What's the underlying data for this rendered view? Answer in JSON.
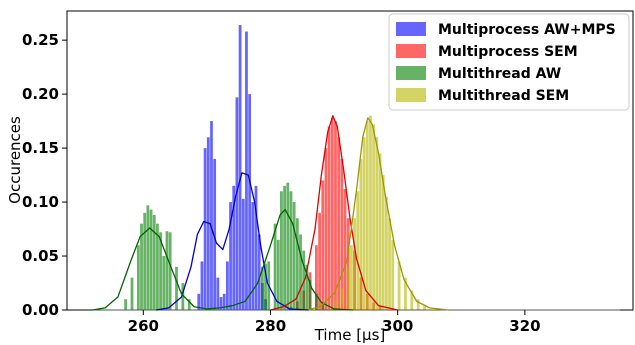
{
  "chart_data": {
    "type": "histogram",
    "xlabel": "Time [µs]",
    "ylabel": "Occurences",
    "xlim": [
      248,
      337
    ],
    "ylim": [
      0,
      0.277
    ],
    "x_ticks": [
      260,
      280,
      300,
      320
    ],
    "x_tick_labels": [
      "260",
      "280",
      "300",
      "320"
    ],
    "y_ticks": [
      0.0,
      0.05,
      0.1,
      0.15,
      0.2,
      0.25
    ],
    "y_tick_labels": [
      "0.00",
      "0.05",
      "0.10",
      "0.15",
      "0.20",
      "0.25"
    ],
    "bin_width": 0.5,
    "bar_alpha": 0.6,
    "legend_position": "top-right",
    "series": [
      {
        "name": "Multiprocess AW+MPS",
        "color": "#0000ff",
        "curve_color": "#0000cc",
        "bins": [
          [
            268.5,
            0.015
          ],
          [
            269.0,
            0.045
          ],
          [
            269.5,
            0.15
          ],
          [
            270.0,
            0.16
          ],
          [
            270.5,
            0.175
          ],
          [
            271.0,
            0.14
          ],
          [
            271.5,
            0.03
          ],
          [
            272.0,
            0.012
          ],
          [
            272.5,
            0.015
          ],
          [
            273.0,
            0.045
          ],
          [
            273.5,
            0.1
          ],
          [
            274.0,
            0.115
          ],
          [
            274.5,
            0.197
          ],
          [
            275.0,
            0.264
          ],
          [
            275.5,
            0.103
          ],
          [
            276.0,
            0.258
          ],
          [
            276.5,
            0.2
          ],
          [
            277.0,
            0.1
          ],
          [
            277.5,
            0.115
          ],
          [
            278.0,
            0.07
          ],
          [
            278.5,
            0.025
          ],
          [
            279.0,
            0.01
          ]
        ],
        "kde": [
          [
            262.0,
            0.0
          ],
          [
            264.0,
            0.002
          ],
          [
            266.0,
            0.012
          ],
          [
            267.5,
            0.04
          ],
          [
            268.5,
            0.07
          ],
          [
            269.5,
            0.082
          ],
          [
            270.5,
            0.08
          ],
          [
            271.5,
            0.062
          ],
          [
            272.5,
            0.056
          ],
          [
            273.5,
            0.075
          ],
          [
            274.5,
            0.105
          ],
          [
            275.5,
            0.127
          ],
          [
            276.5,
            0.125
          ],
          [
            277.5,
            0.1
          ],
          [
            278.5,
            0.058
          ],
          [
            279.5,
            0.025
          ],
          [
            281.0,
            0.008
          ],
          [
            283.0,
            0.001
          ],
          [
            286.0,
            0.0
          ]
        ]
      },
      {
        "name": "Multiprocess SEM",
        "color": "#ff0000",
        "curve_color": "#e00000",
        "bins": [
          [
            283.0,
            0.003
          ],
          [
            284.0,
            0.008
          ],
          [
            285.0,
            0.018
          ],
          [
            286.0,
            0.035
          ],
          [
            287.0,
            0.06
          ],
          [
            287.5,
            0.09
          ],
          [
            288.0,
            0.12
          ],
          [
            288.5,
            0.15
          ],
          [
            289.0,
            0.17
          ],
          [
            289.5,
            0.178
          ],
          [
            290.0,
            0.175
          ],
          [
            290.5,
            0.16
          ],
          [
            291.0,
            0.14
          ],
          [
            291.5,
            0.112
          ],
          [
            292.0,
            0.085
          ],
          [
            293.0,
            0.055
          ],
          [
            294.0,
            0.03
          ],
          [
            295.0,
            0.015
          ],
          [
            296.0,
            0.007
          ],
          [
            297.0,
            0.003
          ]
        ],
        "kde": [
          [
            280.0,
            0.0
          ],
          [
            282.0,
            0.003
          ],
          [
            284.0,
            0.01
          ],
          [
            285.5,
            0.03
          ],
          [
            287.0,
            0.075
          ],
          [
            288.0,
            0.125
          ],
          [
            289.0,
            0.165
          ],
          [
            289.8,
            0.18
          ],
          [
            290.5,
            0.17
          ],
          [
            291.5,
            0.13
          ],
          [
            292.5,
            0.085
          ],
          [
            293.5,
            0.048
          ],
          [
            295.0,
            0.018
          ],
          [
            297.0,
            0.004
          ],
          [
            300.0,
            0.0
          ]
        ]
      },
      {
        "name": "Multithread AW",
        "color": "#008000",
        "curve_color": "#006400",
        "bins": [
          [
            257.0,
            0.01
          ],
          [
            258.0,
            0.03
          ],
          [
            259.0,
            0.06
          ],
          [
            259.5,
            0.08
          ],
          [
            260.0,
            0.09
          ],
          [
            260.5,
            0.097
          ],
          [
            261.0,
            0.093
          ],
          [
            261.5,
            0.088
          ],
          [
            262.0,
            0.08
          ],
          [
            262.5,
            0.072
          ],
          [
            263.0,
            0.05
          ],
          [
            263.5,
            0.073
          ],
          [
            264.0,
            0.072
          ],
          [
            265.0,
            0.04
          ],
          [
            266.0,
            0.025
          ],
          [
            267.0,
            0.01
          ],
          [
            278.5,
            0.04
          ],
          [
            279.0,
            0.043
          ],
          [
            279.5,
            0.045
          ],
          [
            280.5,
            0.08
          ],
          [
            281.0,
            0.065
          ],
          [
            281.5,
            0.11
          ],
          [
            282.0,
            0.115
          ],
          [
            282.5,
            0.118
          ],
          [
            283.0,
            0.11
          ],
          [
            283.5,
            0.1
          ],
          [
            284.0,
            0.085
          ],
          [
            284.5,
            0.07
          ],
          [
            285.0,
            0.055
          ],
          [
            285.5,
            0.042
          ],
          [
            286.0,
            0.028
          ],
          [
            287.0,
            0.015
          ],
          [
            288.0,
            0.007
          ]
        ],
        "kde": [
          [
            252.0,
            0.0
          ],
          [
            254.0,
            0.002
          ],
          [
            256.0,
            0.012
          ],
          [
            258.0,
            0.045
          ],
          [
            259.5,
            0.068
          ],
          [
            261.0,
            0.076
          ],
          [
            262.5,
            0.068
          ],
          [
            264.0,
            0.045
          ],
          [
            266.0,
            0.015
          ],
          [
            268.0,
            0.003
          ],
          [
            270.0,
            0.001
          ],
          [
            272.0,
            0.002
          ],
          [
            274.0,
            0.004
          ],
          [
            276.0,
            0.008
          ],
          [
            278.0,
            0.025
          ],
          [
            280.0,
            0.06
          ],
          [
            281.5,
            0.088
          ],
          [
            282.3,
            0.093
          ],
          [
            283.5,
            0.08
          ],
          [
            285.0,
            0.045
          ],
          [
            286.5,
            0.02
          ],
          [
            288.0,
            0.007
          ],
          [
            290.0,
            0.001
          ],
          [
            293.0,
            0.0
          ]
        ]
      },
      {
        "name": "Multithread SEM",
        "color": "#b5b500",
        "curve_color": "#9a9a00",
        "bins": [
          [
            289.0,
            0.003
          ],
          [
            290.0,
            0.01
          ],
          [
            291.0,
            0.02
          ],
          [
            292.0,
            0.04
          ],
          [
            292.5,
            0.06
          ],
          [
            293.0,
            0.085
          ],
          [
            293.5,
            0.11
          ],
          [
            294.0,
            0.14
          ],
          [
            294.5,
            0.16
          ],
          [
            295.0,
            0.175
          ],
          [
            295.5,
            0.18
          ],
          [
            296.0,
            0.172
          ],
          [
            296.5,
            0.16
          ],
          [
            297.0,
            0.145
          ],
          [
            297.5,
            0.125
          ],
          [
            298.0,
            0.105
          ],
          [
            298.5,
            0.085
          ],
          [
            299.0,
            0.065
          ],
          [
            300.0,
            0.045
          ],
          [
            301.0,
            0.03
          ],
          [
            302.0,
            0.018
          ],
          [
            303.0,
            0.01
          ],
          [
            304.0,
            0.005
          ]
        ],
        "kde": [
          [
            286.0,
            0.0
          ],
          [
            288.0,
            0.004
          ],
          [
            290.0,
            0.015
          ],
          [
            292.0,
            0.045
          ],
          [
            293.5,
            0.11
          ],
          [
            294.5,
            0.16
          ],
          [
            295.3,
            0.178
          ],
          [
            296.0,
            0.172
          ],
          [
            297.0,
            0.145
          ],
          [
            298.0,
            0.108
          ],
          [
            299.5,
            0.06
          ],
          [
            301.0,
            0.028
          ],
          [
            303.0,
            0.008
          ],
          [
            305.0,
            0.002
          ],
          [
            308.0,
            0.0
          ]
        ]
      }
    ],
    "baseline_curve": [
      [
        252.0,
        0.0
      ],
      [
        300.0,
        0.0
      ],
      [
        335.0,
        0.0
      ]
    ]
  }
}
